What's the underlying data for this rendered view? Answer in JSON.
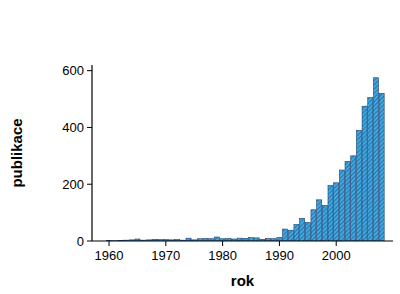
{
  "chart_data": {
    "type": "bar",
    "x_label": "rok",
    "y_label": "publikace",
    "x": [
      1960,
      1961,
      1962,
      1963,
      1964,
      1965,
      1966,
      1967,
      1968,
      1969,
      1970,
      1971,
      1972,
      1973,
      1974,
      1975,
      1976,
      1977,
      1978,
      1979,
      1980,
      1981,
      1982,
      1983,
      1984,
      1985,
      1986,
      1987,
      1988,
      1989,
      1990,
      1991,
      1992,
      1993,
      1994,
      1995,
      1996,
      1997,
      1998,
      1999,
      2000,
      2001,
      2002,
      2003,
      2004,
      2005,
      2006,
      2007,
      2008
    ],
    "values": [
      2,
      1,
      2,
      3,
      4,
      7,
      3,
      4,
      6,
      5,
      5,
      4,
      5,
      3,
      10,
      4,
      8,
      9,
      8,
      14,
      8,
      9,
      7,
      10,
      9,
      12,
      11,
      6,
      9,
      8,
      12,
      42,
      38,
      58,
      80,
      65,
      110,
      145,
      125,
      195,
      205,
      250,
      280,
      300,
      390,
      475,
      505,
      575,
      520
    ],
    "color": "#3fa9df",
    "xlim": [
      1957,
      2010
    ],
    "xticks": [
      1960,
      1970,
      1980,
      1990,
      2000
    ],
    "ylim": [
      0,
      620
    ],
    "yticks": [
      0,
      200,
      400,
      600
    ],
    "grid": false
  }
}
